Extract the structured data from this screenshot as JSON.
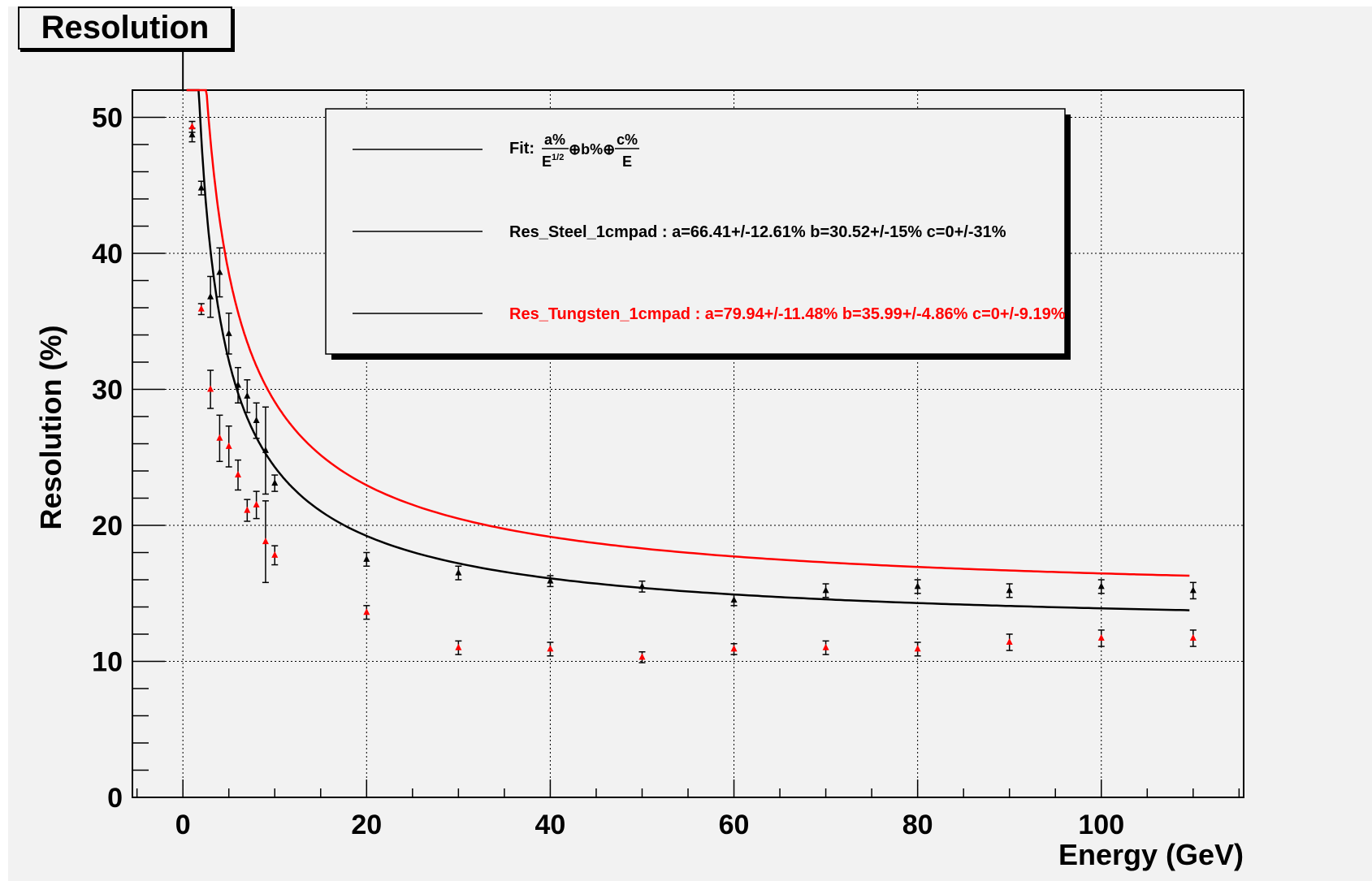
{
  "chart_data": {
    "type": "scatter",
    "title": "Resolution",
    "xlabel": "Energy (GeV)",
    "ylabel": "Resolution (%)",
    "xlim": [
      -5.5,
      115.5
    ],
    "ylim": [
      0,
      52
    ],
    "x_ticks": [
      0,
      20,
      40,
      60,
      80,
      100
    ],
    "y_ticks": [
      0,
      10,
      20,
      30,
      40,
      50
    ],
    "grid": true,
    "legend_position": "top-right",
    "legend": {
      "fit_prefix": "Fit:",
      "fit_a_num": "a%",
      "fit_a_den": "E",
      "fit_a_den_sup": "1/2",
      "fit_mid": "⊕b%⊕",
      "fit_c_num": "c%",
      "fit_c_den": "E",
      "steel": "Res_Steel_1cmpad : a=66.41+/-12.61% b=30.52+/-15%  c=0+/-31%",
      "tungsten": "Res_Tungsten_1cmpad : a=79.94+/-11.48% b=35.99+/-4.86%  c=0+/-9.19%"
    },
    "series": [
      {
        "name": "Res_Steel_1cmpad",
        "color": "#000000",
        "fit": {
          "a": 66.41,
          "b": 30.52,
          "c": 0
        },
        "points": [
          {
            "x": 1,
            "y": 48.7,
            "err": 0.5
          },
          {
            "x": 2,
            "y": 44.8,
            "err": 0.5
          },
          {
            "x": 3,
            "y": 36.8,
            "err": 1.5
          },
          {
            "x": 4,
            "y": 38.6,
            "err": 1.8
          },
          {
            "x": 5,
            "y": 34.1,
            "err": 1.5
          },
          {
            "x": 6,
            "y": 30.3,
            "err": 1.3
          },
          {
            "x": 7,
            "y": 29.5,
            "err": 1.2
          },
          {
            "x": 8,
            "y": 27.7,
            "err": 1.3
          },
          {
            "x": 9,
            "y": 25.5,
            "err": 3.2
          },
          {
            "x": 10,
            "y": 23.1,
            "err": 0.6
          },
          {
            "x": 20,
            "y": 17.5,
            "err": 0.5
          },
          {
            "x": 30,
            "y": 16.5,
            "err": 0.5
          },
          {
            "x": 40,
            "y": 15.9,
            "err": 0.4
          },
          {
            "x": 50,
            "y": 15.5,
            "err": 0.4
          },
          {
            "x": 60,
            "y": 14.5,
            "err": 0.4
          },
          {
            "x": 70,
            "y": 15.2,
            "err": 0.5
          },
          {
            "x": 80,
            "y": 15.5,
            "err": 0.5
          },
          {
            "x": 90,
            "y": 15.2,
            "err": 0.5
          },
          {
            "x": 100,
            "y": 15.5,
            "err": 0.5
          },
          {
            "x": 110,
            "y": 15.2,
            "err": 0.6
          }
        ]
      },
      {
        "name": "Res_Tungsten_1cmpad",
        "color": "#ff0000",
        "fit": {
          "a": 79.94,
          "b": 35.99,
          "c": 0
        },
        "points": [
          {
            "x": 1,
            "y": 49.3,
            "err": 0.4
          },
          {
            "x": 2,
            "y": 35.9,
            "err": 0.4
          },
          {
            "x": 3,
            "y": 30.0,
            "err": 1.4
          },
          {
            "x": 4,
            "y": 26.4,
            "err": 1.7
          },
          {
            "x": 5,
            "y": 25.8,
            "err": 1.5
          },
          {
            "x": 6,
            "y": 23.7,
            "err": 1.1
          },
          {
            "x": 7,
            "y": 21.1,
            "err": 0.8
          },
          {
            "x": 8,
            "y": 21.5,
            "err": 1.0
          },
          {
            "x": 9,
            "y": 18.8,
            "err": 3.0
          },
          {
            "x": 10,
            "y": 17.8,
            "err": 0.7
          },
          {
            "x": 20,
            "y": 13.6,
            "err": 0.5
          },
          {
            "x": 30,
            "y": 11.0,
            "err": 0.5
          },
          {
            "x": 40,
            "y": 10.9,
            "err": 0.5
          },
          {
            "x": 50,
            "y": 10.3,
            "err": 0.4
          },
          {
            "x": 60,
            "y": 10.9,
            "err": 0.4
          },
          {
            "x": 70,
            "y": 11.0,
            "err": 0.5
          },
          {
            "x": 80,
            "y": 10.9,
            "err": 0.5
          },
          {
            "x": 90,
            "y": 11.4,
            "err": 0.6
          },
          {
            "x": 100,
            "y": 11.7,
            "err": 0.6
          },
          {
            "x": 110,
            "y": 11.7,
            "err": 0.6
          }
        ]
      }
    ]
  }
}
